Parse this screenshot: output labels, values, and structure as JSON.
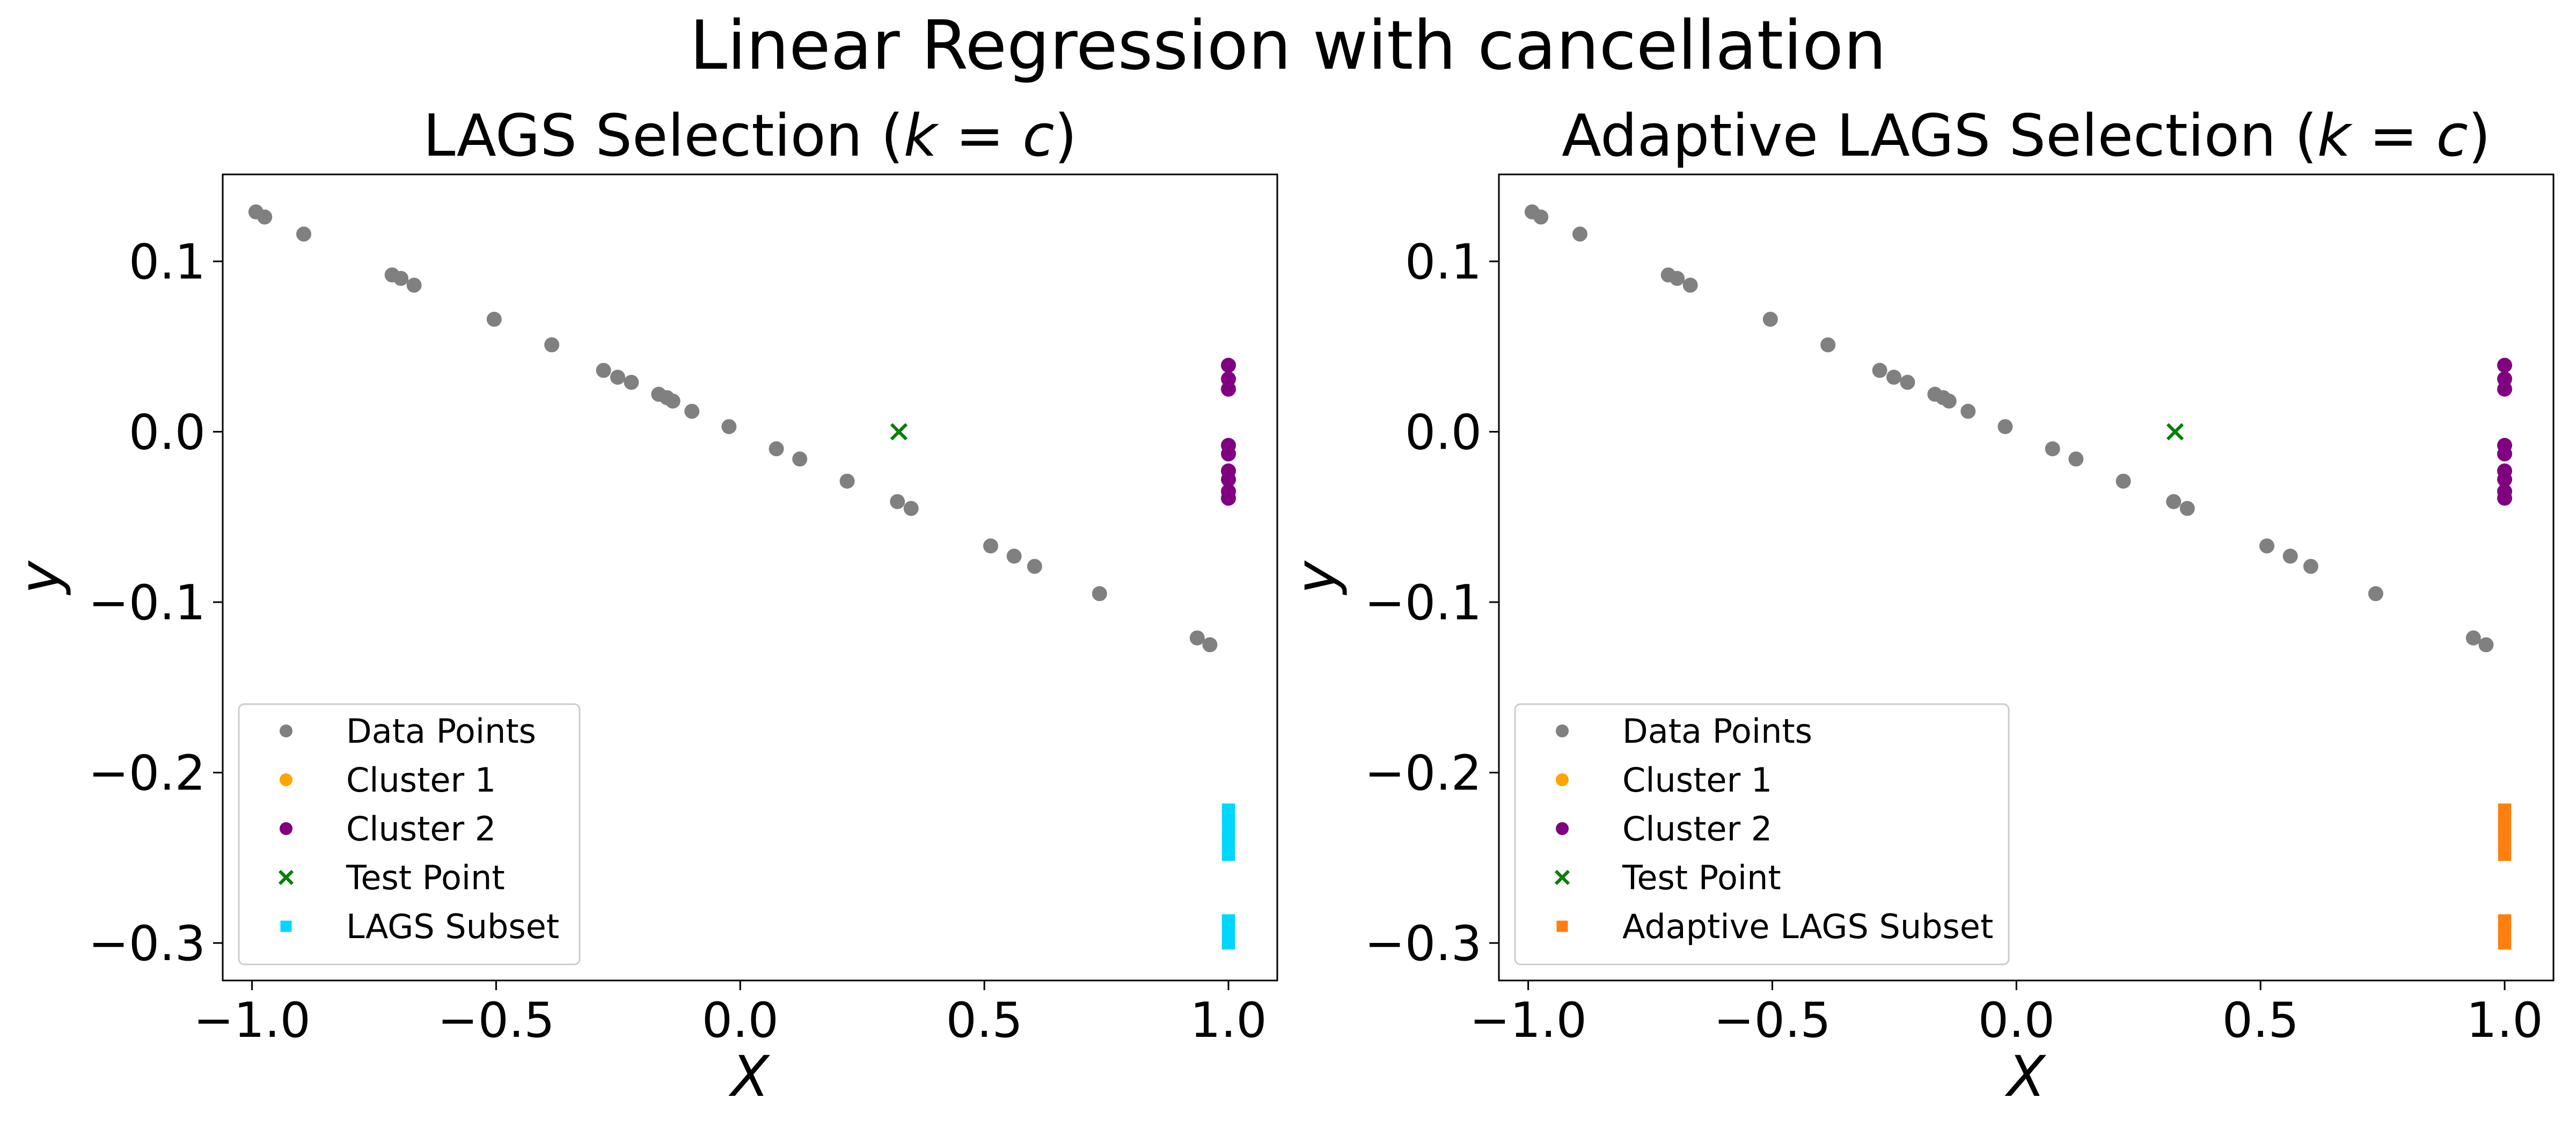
{
  "figure": {
    "suptitle": "Linear Regression with cancellation"
  },
  "chart_data": [
    {
      "type": "scatter",
      "title": "LAGS Selection (k = c)",
      "title_prefix": "LAGS Selection (",
      "title_math_k": "k",
      "title_math_eq": " = ",
      "title_math_c": "c",
      "title_suffix": ")",
      "xlabel": "X",
      "ylabel": "y",
      "xlim": [
        -1.06,
        1.1
      ],
      "ylim": [
        -0.322,
        0.151
      ],
      "xticks": [
        -1.0,
        -0.5,
        0.0,
        0.5,
        1.0
      ],
      "xtick_labels": [
        "−1.0",
        "−0.5",
        "0.0",
        "0.5",
        "1.0"
      ],
      "yticks": [
        0.1,
        0.0,
        -0.1,
        -0.2,
        -0.3
      ],
      "ytick_labels": [
        "0.1",
        "0.0",
        "−0.1",
        "−0.2",
        "−0.3"
      ],
      "legend_position": "lower left",
      "series": [
        {
          "name": "Data Points",
          "color": "#808080",
          "marker": "circle",
          "points": [
            [
              -0.992,
              0.129
            ],
            [
              -0.974,
              0.126
            ],
            [
              -0.894,
              0.116
            ],
            [
              -0.713,
              0.092
            ],
            [
              -0.695,
              0.09
            ],
            [
              -0.668,
              0.086
            ],
            [
              -0.504,
              0.066
            ],
            [
              -0.386,
              0.051
            ],
            [
              -0.28,
              0.036
            ],
            [
              -0.251,
              0.032
            ],
            [
              -0.223,
              0.029
            ],
            [
              -0.167,
              0.022
            ],
            [
              -0.15,
              0.02
            ],
            [
              -0.138,
              0.018
            ],
            [
              -0.099,
              0.012
            ],
            [
              -0.023,
              0.003
            ],
            [
              0.074,
              -0.01
            ],
            [
              0.122,
              -0.016
            ],
            [
              0.219,
              -0.029
            ],
            [
              0.322,
              -0.041
            ],
            [
              0.35,
              -0.045
            ],
            [
              0.513,
              -0.067
            ],
            [
              0.561,
              -0.073
            ],
            [
              0.603,
              -0.079
            ],
            [
              0.736,
              -0.095
            ],
            [
              0.936,
              -0.121
            ],
            [
              0.962,
              -0.125
            ]
          ]
        },
        {
          "name": "Cluster 1",
          "color": "#ffa500",
          "marker": "circle",
          "points": []
        },
        {
          "name": "Cluster 2",
          "color": "#800080",
          "marker": "circle",
          "points": [
            [
              1.0,
              0.039
            ],
            [
              1.0,
              0.031
            ],
            [
              1.0,
              0.025
            ],
            [
              1.0,
              -0.008
            ],
            [
              1.0,
              -0.013
            ],
            [
              1.0,
              -0.023
            ],
            [
              1.0,
              -0.028
            ],
            [
              1.0,
              -0.035
            ],
            [
              1.0,
              -0.039
            ]
          ]
        },
        {
          "name": "Test Point",
          "color": "#008000",
          "marker": "x",
          "points": [
            [
              0.325,
              0.0
            ]
          ]
        },
        {
          "name": "LAGS Subset",
          "color": "#00d7ff",
          "marker": "square",
          "points": [
            [
              1.0,
              -0.222
            ],
            [
              1.0,
              -0.228
            ],
            [
              1.0,
              -0.235
            ],
            [
              1.0,
              -0.241
            ],
            [
              1.0,
              -0.248
            ],
            [
              1.0,
              -0.287
            ],
            [
              1.0,
              -0.293
            ],
            [
              1.0,
              -0.3
            ]
          ]
        }
      ]
    },
    {
      "type": "scatter",
      "title": "Adaptive LAGS Selection (k = c)",
      "title_prefix": "Adaptive LAGS Selection (",
      "title_math_k": "k",
      "title_math_eq": " = ",
      "title_math_c": "c",
      "title_suffix": ")",
      "xlabel": "X",
      "ylabel": "y",
      "xlim": [
        -1.06,
        1.1
      ],
      "ylim": [
        -0.322,
        0.151
      ],
      "xticks": [
        -1.0,
        -0.5,
        0.0,
        0.5,
        1.0
      ],
      "xtick_labels": [
        "−1.0",
        "−0.5",
        "0.0",
        "0.5",
        "1.0"
      ],
      "yticks": [
        0.1,
        0.0,
        -0.1,
        -0.2,
        -0.3
      ],
      "ytick_labels": [
        "0.1",
        "0.0",
        "−0.1",
        "−0.2",
        "−0.3"
      ],
      "legend_position": "lower left",
      "series": [
        {
          "name": "Data Points",
          "color": "#808080",
          "marker": "circle",
          "points": [
            [
              -0.992,
              0.129
            ],
            [
              -0.974,
              0.126
            ],
            [
              -0.894,
              0.116
            ],
            [
              -0.713,
              0.092
            ],
            [
              -0.695,
              0.09
            ],
            [
              -0.668,
              0.086
            ],
            [
              -0.504,
              0.066
            ],
            [
              -0.386,
              0.051
            ],
            [
              -0.28,
              0.036
            ],
            [
              -0.251,
              0.032
            ],
            [
              -0.223,
              0.029
            ],
            [
              -0.167,
              0.022
            ],
            [
              -0.15,
              0.02
            ],
            [
              -0.138,
              0.018
            ],
            [
              -0.099,
              0.012
            ],
            [
              -0.023,
              0.003
            ],
            [
              0.074,
              -0.01
            ],
            [
              0.122,
              -0.016
            ],
            [
              0.219,
              -0.029
            ],
            [
              0.322,
              -0.041
            ],
            [
              0.35,
              -0.045
            ],
            [
              0.513,
              -0.067
            ],
            [
              0.561,
              -0.073
            ],
            [
              0.603,
              -0.079
            ],
            [
              0.736,
              -0.095
            ],
            [
              0.936,
              -0.121
            ],
            [
              0.962,
              -0.125
            ]
          ]
        },
        {
          "name": "Cluster 1",
          "color": "#ffa500",
          "marker": "circle",
          "points": []
        },
        {
          "name": "Cluster 2",
          "color": "#800080",
          "marker": "circle",
          "points": [
            [
              1.0,
              0.039
            ],
            [
              1.0,
              0.031
            ],
            [
              1.0,
              0.025
            ],
            [
              1.0,
              -0.008
            ],
            [
              1.0,
              -0.013
            ],
            [
              1.0,
              -0.023
            ],
            [
              1.0,
              -0.028
            ],
            [
              1.0,
              -0.035
            ],
            [
              1.0,
              -0.039
            ]
          ]
        },
        {
          "name": "Test Point",
          "color": "#008000",
          "marker": "x",
          "points": [
            [
              0.325,
              0.0
            ]
          ]
        },
        {
          "name": "Adaptive LAGS Subset",
          "color": "#ff7f0e",
          "marker": "square",
          "points": [
            [
              1.0,
              -0.222
            ],
            [
              1.0,
              -0.228
            ],
            [
              1.0,
              -0.235
            ],
            [
              1.0,
              -0.241
            ],
            [
              1.0,
              -0.248
            ],
            [
              1.0,
              -0.287
            ],
            [
              1.0,
              -0.293
            ],
            [
              1.0,
              -0.3
            ]
          ]
        }
      ]
    }
  ]
}
